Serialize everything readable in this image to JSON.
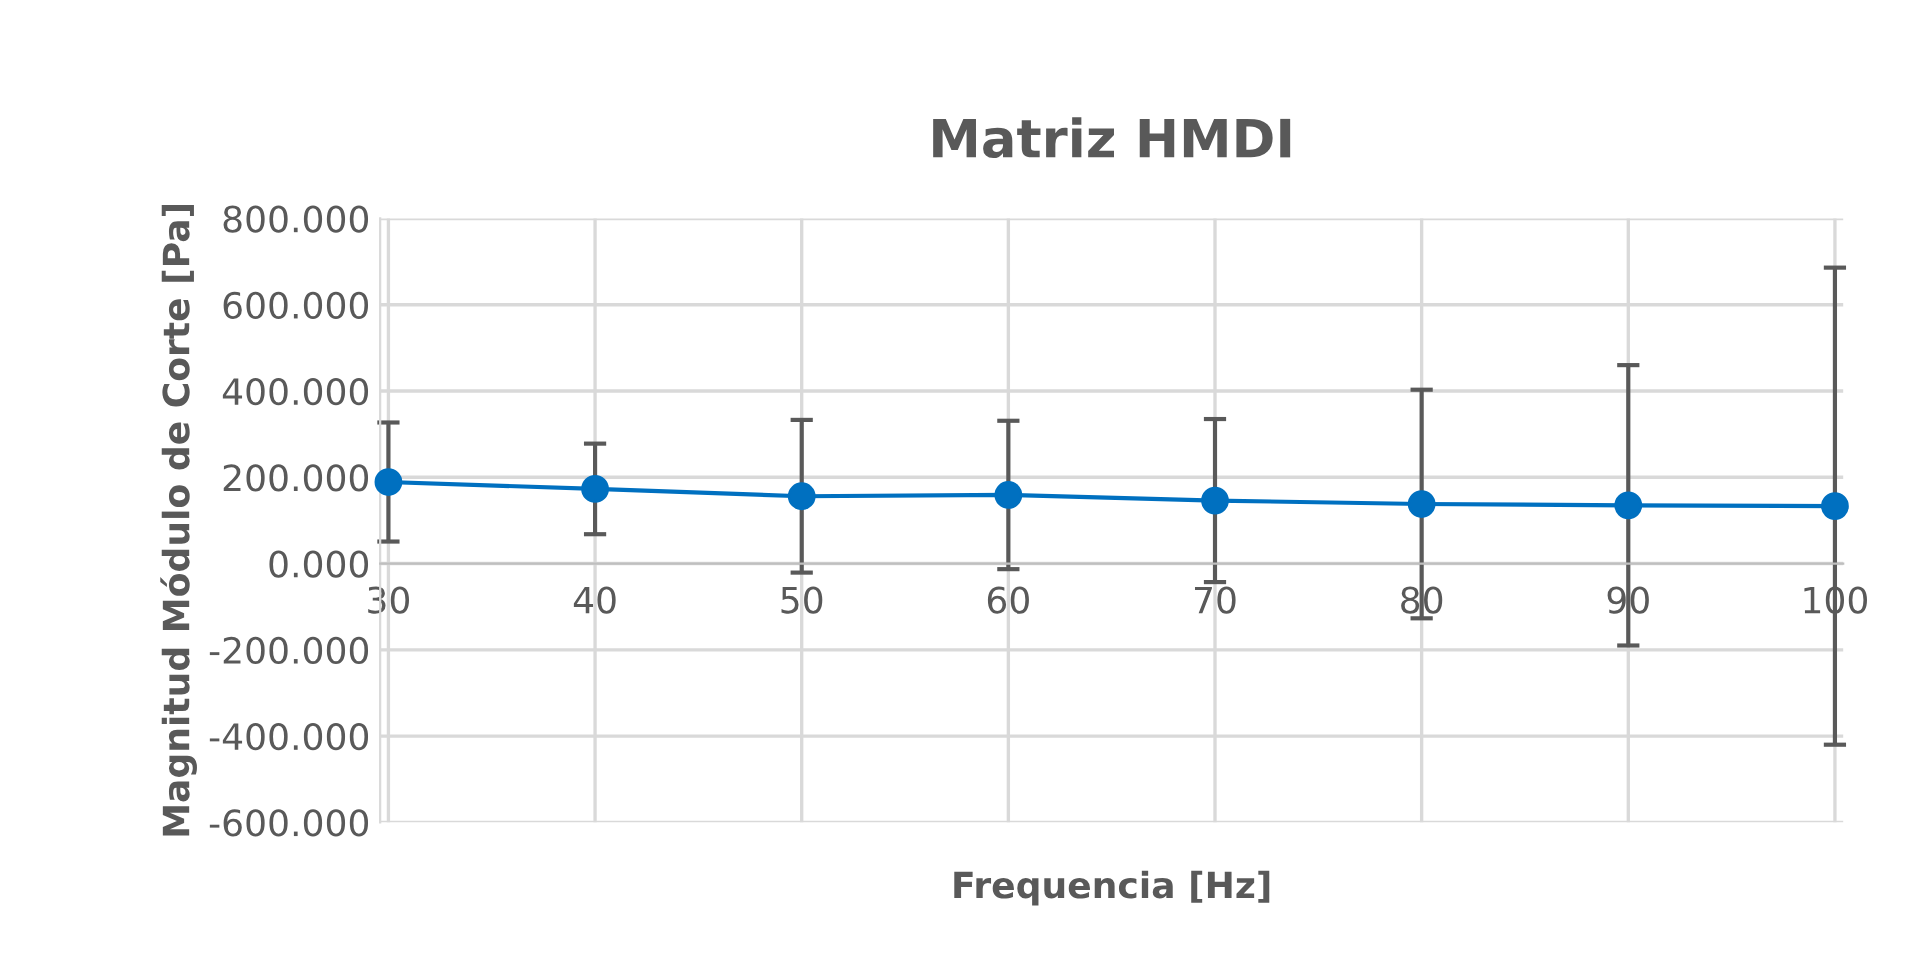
{
  "chart_data": {
    "type": "line",
    "title": "Matriz HMDI",
    "xlabel": "Frequencia [Hz]",
    "ylabel": "Magnitud Módulo de Corte [Pa]",
    "categories": [
      "30",
      "40",
      "50",
      "60",
      "70",
      "80",
      "90",
      "100"
    ],
    "series": [
      {
        "color": "#0070c0",
        "values": [
          189,
          173,
          156,
          159,
          146,
          138,
          135,
          133
        ],
        "errors": [
          138,
          105,
          177,
          172,
          189,
          265,
          325,
          553
        ]
      }
    ],
    "ylim": [
      -600,
      800
    ],
    "yticks": [
      {
        "value": -600,
        "label": "-600.000"
      },
      {
        "value": -400,
        "label": "-400.000"
      },
      {
        "value": -200,
        "label": "-200.000"
      },
      {
        "value": 0,
        "label": "0.000"
      },
      {
        "value": 200,
        "label": "200.000"
      },
      {
        "value": 400,
        "label": "400.000"
      },
      {
        "value": 600,
        "label": "600.000"
      },
      {
        "value": 800,
        "label": "800.000"
      }
    ],
    "grid": true,
    "marker": "circle",
    "line_style": "solid"
  }
}
